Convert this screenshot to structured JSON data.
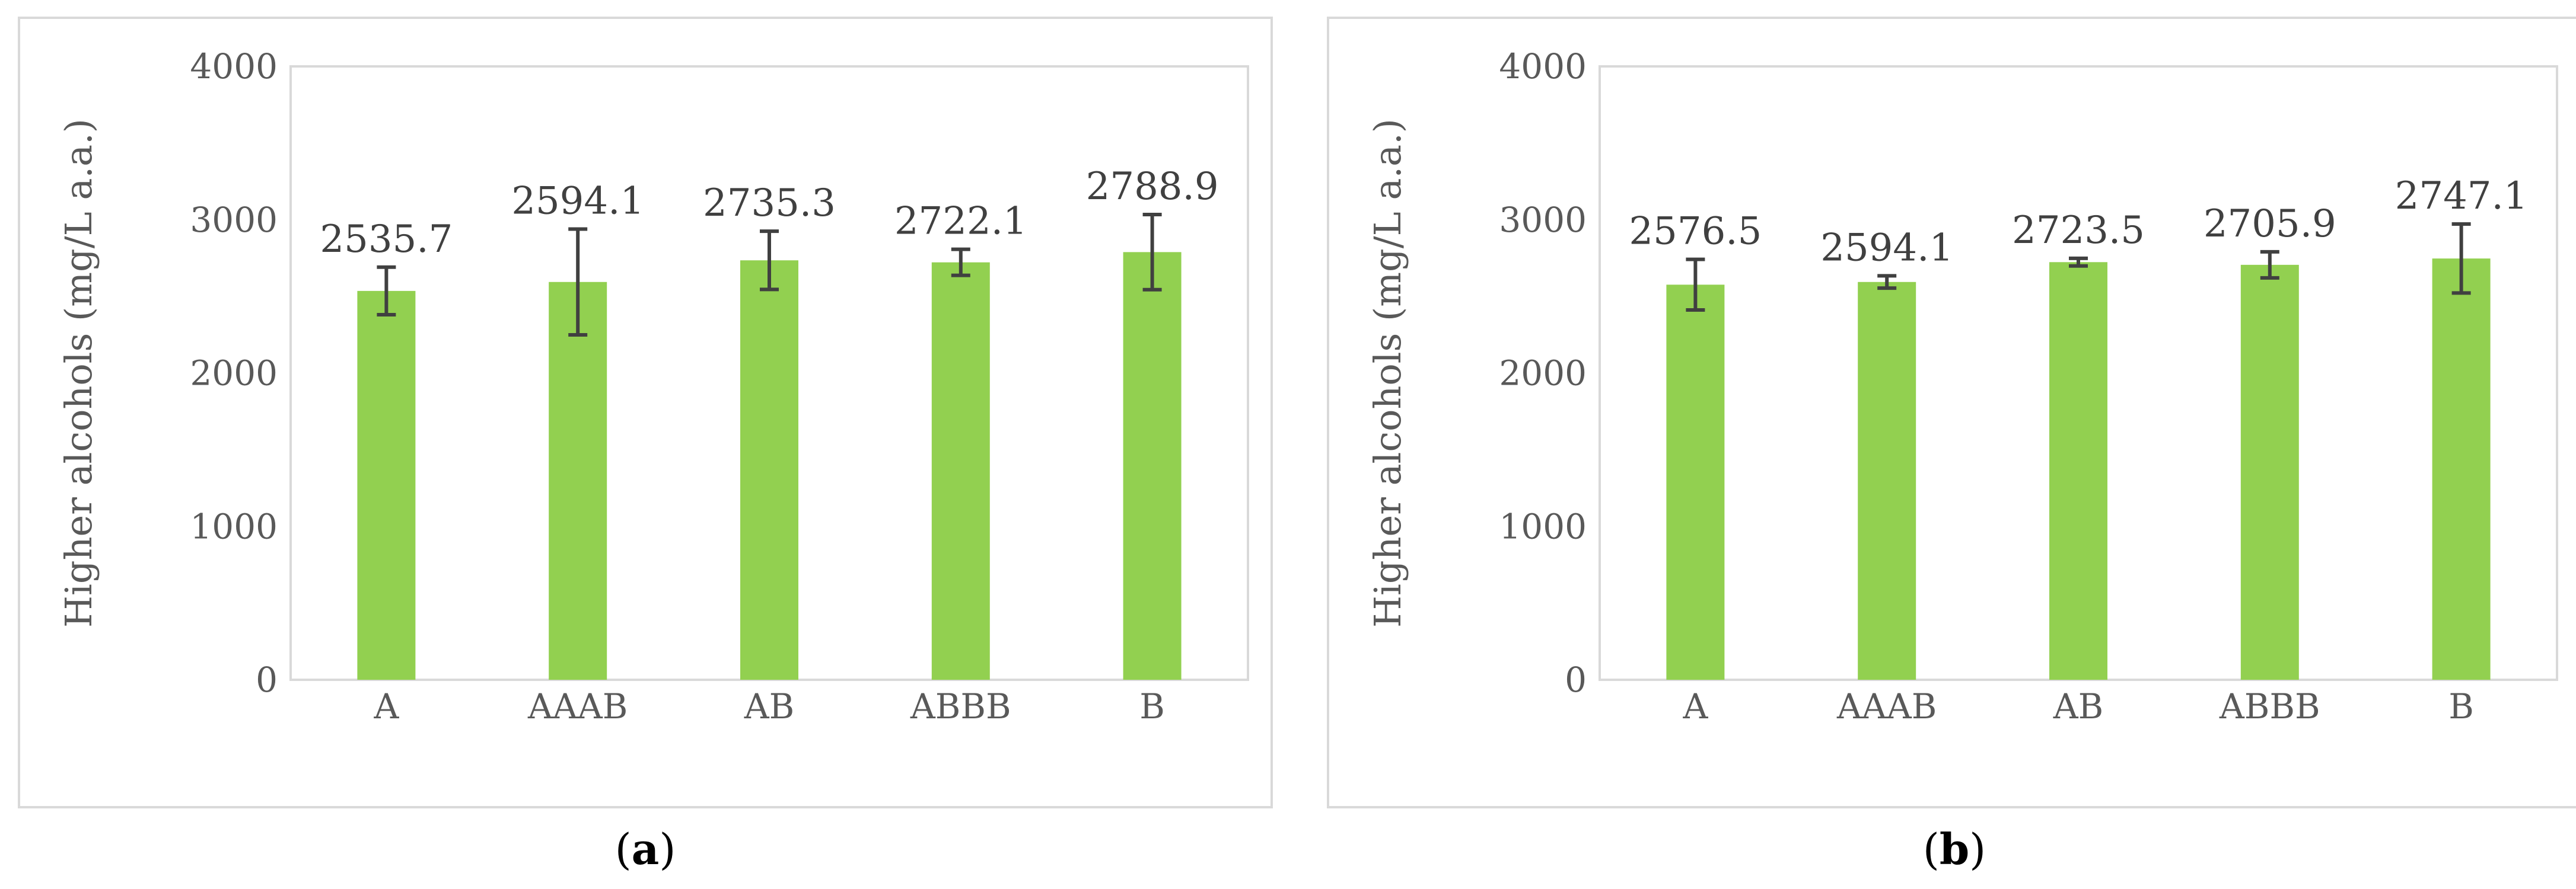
{
  "chart_data": [
    {
      "type": "bar",
      "panel": "a",
      "caption_letter": "a",
      "ylabel": "Higher alcohols (mg/L a.a.)",
      "xlabel": "",
      "ylim": [
        0,
        4000
      ],
      "yticks": [
        0,
        1000,
        2000,
        3000,
        4000
      ],
      "grid": false,
      "legend": "none",
      "bar_color": "#92d050",
      "error_color": "#404040",
      "categories": [
        "A",
        "AAAB",
        "AB",
        "ABBB",
        "B"
      ],
      "values": [
        2535.7,
        2594.1,
        2735.3,
        2722.1,
        2788.9
      ],
      "data_labels": [
        "2535.7",
        "2594.1",
        "2735.3",
        "2722.1",
        "2788.9"
      ],
      "errors": [
        155,
        345,
        190,
        85,
        245
      ]
    },
    {
      "type": "bar",
      "panel": "b",
      "caption_letter": "b",
      "ylabel": "Higher alcohols (mg/L a.a.)",
      "xlabel": "",
      "ylim": [
        0,
        4000
      ],
      "yticks": [
        0,
        1000,
        2000,
        3000,
        4000
      ],
      "grid": false,
      "legend": "none",
      "bar_color": "#92d050",
      "error_color": "#404040",
      "categories": [
        "A",
        "AAAB",
        "AB",
        "ABBB",
        "B"
      ],
      "values": [
        2576.5,
        2594.1,
        2723.5,
        2705.9,
        2747.1
      ],
      "data_labels": [
        "2576.5",
        "2594.1",
        "2723.5",
        "2705.9",
        "2747.1"
      ],
      "errors": [
        165,
        40,
        25,
        85,
        225
      ]
    }
  ]
}
